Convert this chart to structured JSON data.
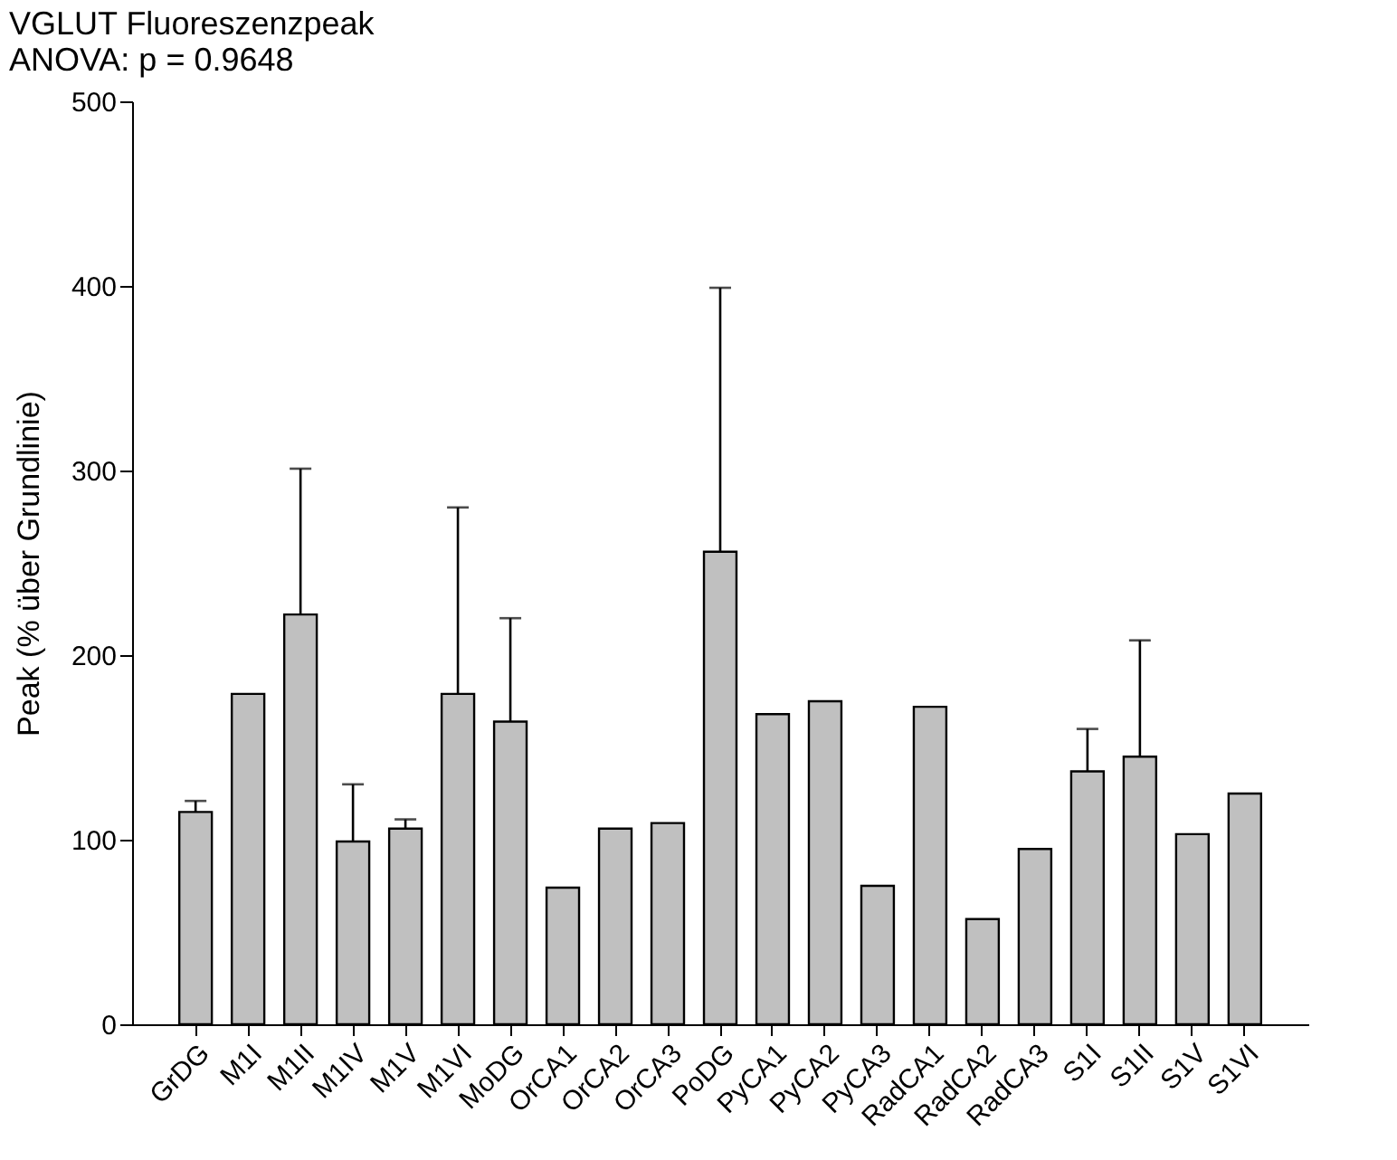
{
  "chart_data": {
    "type": "bar",
    "title": "VGLUT Fluoreszenzpeak",
    "subtitle": "ANOVA: p = 0.9648",
    "ylabel": "Peak (% über Grundlinie)",
    "categories": [
      "GrDG",
      "M1I",
      "M1II",
      "M1IV",
      "M1V",
      "M1VI",
      "MoDG",
      "OrCA1",
      "OrCA2",
      "OrCA3",
      "PoDG",
      "PyCA1",
      "PyCA2",
      "PyCA3",
      "RadCA1",
      "RadCA2",
      "RadCA3",
      "S1I",
      "S1II",
      "S1V",
      "S1VI"
    ],
    "values": [
      115,
      179,
      222,
      99,
      106,
      179,
      164,
      74,
      106,
      109,
      256,
      168,
      175,
      75,
      172,
      57,
      95,
      137,
      145,
      103,
      125
    ],
    "errors": [
      [
        115,
        121
      ],
      null,
      [
        222,
        301
      ],
      [
        99,
        130
      ],
      [
        106,
        111
      ],
      [
        179,
        280
      ],
      [
        164,
        220
      ],
      null,
      null,
      null,
      [
        256,
        399
      ],
      null,
      null,
      null,
      null,
      null,
      null,
      [
        137,
        160
      ],
      [
        145,
        208
      ],
      null,
      null
    ],
    "color": "#c0c0c0",
    "ylim": [
      0,
      500
    ],
    "yticks": [
      0,
      100,
      200,
      300,
      400,
      500
    ],
    "grid": false
  }
}
